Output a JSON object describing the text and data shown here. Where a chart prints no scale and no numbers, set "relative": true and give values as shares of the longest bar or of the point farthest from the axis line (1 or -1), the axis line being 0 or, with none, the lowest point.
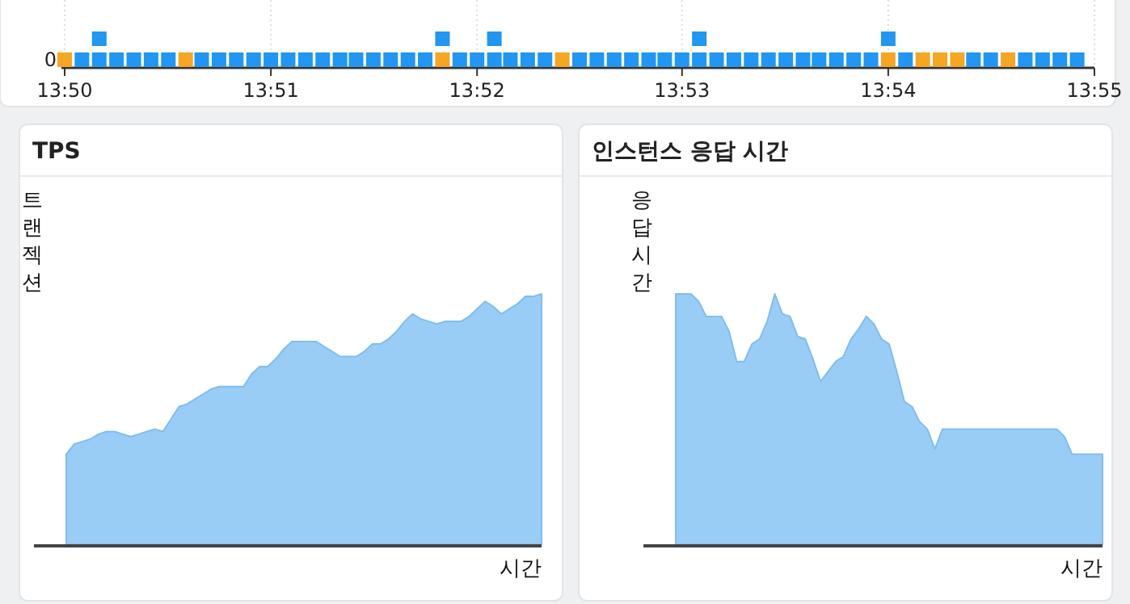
{
  "chart_data": [
    {
      "type": "scatter",
      "marker": "square",
      "grid": "x",
      "xlim": [
        13.8333,
        13.9167
      ],
      "relative": true,
      "annotations": [
        "0"
      ],
      "xticks": [
        {
          "value": 13.8333,
          "label": "13:50"
        },
        {
          "value": 13.85,
          "label": "13:51"
        },
        {
          "value": 13.8667,
          "label": "13:52"
        },
        {
          "value": 13.8833,
          "label": "13:53"
        },
        {
          "value": 13.9,
          "label": "13:54"
        },
        {
          "value": 13.9167,
          "label": "13:55"
        }
      ],
      "series": [
        {
          "color": "#2196f3",
          "x": [
            13.8347,
            13.8361,
            13.8361,
            13.8375,
            13.8389,
            13.8403,
            13.8417,
            13.8444,
            13.8458,
            13.8472,
            13.8486,
            13.85,
            13.8514,
            13.8528,
            13.8542,
            13.8556,
            13.8569,
            13.8583,
            13.8597,
            13.8611,
            13.8625,
            13.8639,
            13.8653,
            13.8667,
            13.8681,
            13.8681,
            13.8694,
            13.8708,
            13.8722,
            13.875,
            13.8764,
            13.8778,
            13.8792,
            13.8806,
            13.8819,
            13.8833,
            13.8847,
            13.8847,
            13.8861,
            13.8875,
            13.8889,
            13.8903,
            13.8917,
            13.8931,
            13.8944,
            13.8958,
            13.8972,
            13.8986,
            13.9,
            13.9014,
            13.9069,
            13.9083,
            13.9111,
            13.9125,
            13.9139,
            13.9153
          ],
          "values": [
            0.28,
            0.28,
            1,
            0.28,
            0.28,
            0.28,
            0.28,
            0.28,
            0.28,
            0.28,
            0.28,
            0.28,
            0.28,
            0.28,
            0.28,
            0.28,
            0.28,
            0.28,
            0.28,
            0.28,
            0.28,
            1,
            0.28,
            0.28,
            0.28,
            1,
            0.28,
            0.28,
            0.28,
            0.28,
            0.28,
            0.28,
            0.28,
            0.28,
            0.28,
            0.28,
            0.28,
            1,
            0.28,
            0.28,
            0.28,
            0.28,
            0.28,
            0.28,
            0.28,
            0.28,
            0.28,
            0.28,
            1,
            0.28,
            0.28,
            0.28,
            0.28,
            0.28,
            0.28,
            0.28
          ]
        },
        {
          "color": "#f5a623",
          "x": [
            13.8333,
            13.8431,
            13.8639,
            13.8736,
            13.9,
            13.9028,
            13.9042,
            13.9056,
            13.9097
          ],
          "values": [
            0.28,
            0.28,
            0.28,
            0.28,
            0.28,
            0.28,
            0.28,
            0.28,
            0.28
          ]
        }
      ]
    },
    {
      "type": "area",
      "title": "TPS",
      "ylabel": "트랜젝션",
      "xlabel": "시간",
      "relative": true,
      "categories": [
        null,
        null,
        null,
        null,
        null,
        null,
        null,
        null,
        null,
        null,
        null,
        null,
        null,
        null,
        null,
        null,
        null,
        null,
        null,
        null,
        null,
        null,
        null,
        null,
        null,
        null,
        null,
        null,
        null,
        null,
        null,
        null,
        null,
        null,
        null,
        null,
        null,
        null,
        null,
        null,
        null,
        null,
        null,
        null,
        null,
        null,
        null,
        null,
        null,
        null,
        null,
        null,
        null,
        null,
        null,
        null,
        null,
        null,
        null,
        null
      ],
      "series": [
        {
          "color": "#99cdf6",
          "values": [
            0.36,
            0.4,
            0.41,
            0.42,
            0.44,
            0.45,
            0.45,
            0.44,
            0.43,
            0.44,
            0.45,
            0.46,
            0.45,
            0.5,
            0.55,
            0.56,
            0.58,
            0.6,
            0.62,
            0.63,
            0.63,
            0.63,
            0.63,
            0.68,
            0.71,
            0.71,
            0.74,
            0.78,
            0.81,
            0.81,
            0.81,
            0.81,
            0.79,
            0.77,
            0.75,
            0.75,
            0.75,
            0.77,
            0.8,
            0.8,
            0.82,
            0.85,
            0.89,
            0.92,
            0.9,
            0.89,
            0.88,
            0.89,
            0.89,
            0.89,
            0.91,
            0.94,
            0.97,
            0.95,
            0.92,
            0.94,
            0.96,
            0.99,
            0.99,
            1
          ]
        }
      ]
    },
    {
      "type": "area",
      "title": "인스턴스 응답 시간",
      "ylabel": "응답시간",
      "xlabel": "시간",
      "relative": true,
      "categories": [
        null,
        null,
        null,
        null,
        null,
        null,
        null,
        null,
        null,
        null,
        null,
        null,
        null,
        null,
        null,
        null,
        null,
        null,
        null,
        null,
        null,
        null,
        null,
        null,
        null,
        null,
        null,
        null,
        null,
        null,
        null,
        null,
        null,
        null,
        null,
        null,
        null,
        null,
        null,
        null,
        null,
        null,
        null,
        null,
        null,
        null,
        null,
        null,
        null,
        null,
        null,
        null,
        null,
        null,
        null,
        null,
        null
      ],
      "series": [
        {
          "color": "#99cdf6",
          "values": [
            1,
            1,
            1,
            0.97,
            0.91,
            0.91,
            0.91,
            0.85,
            0.73,
            0.73,
            0.8,
            0.82,
            0.89,
            1,
            0.92,
            0.91,
            0.83,
            0.82,
            0.74,
            0.65,
            0.69,
            0.73,
            0.75,
            0.82,
            0.86,
            0.91,
            0.88,
            0.82,
            0.8,
            0.69,
            0.57,
            0.55,
            0.49,
            0.46,
            0.38,
            0.46,
            0.46,
            0.46,
            0.46,
            0.46,
            0.46,
            0.46,
            0.46,
            0.46,
            0.46,
            0.46,
            0.46,
            0.46,
            0.46,
            0.46,
            0.46,
            0.43,
            0.36,
            0.36,
            0.36,
            0.36,
            0.36
          ]
        }
      ]
    }
  ]
}
